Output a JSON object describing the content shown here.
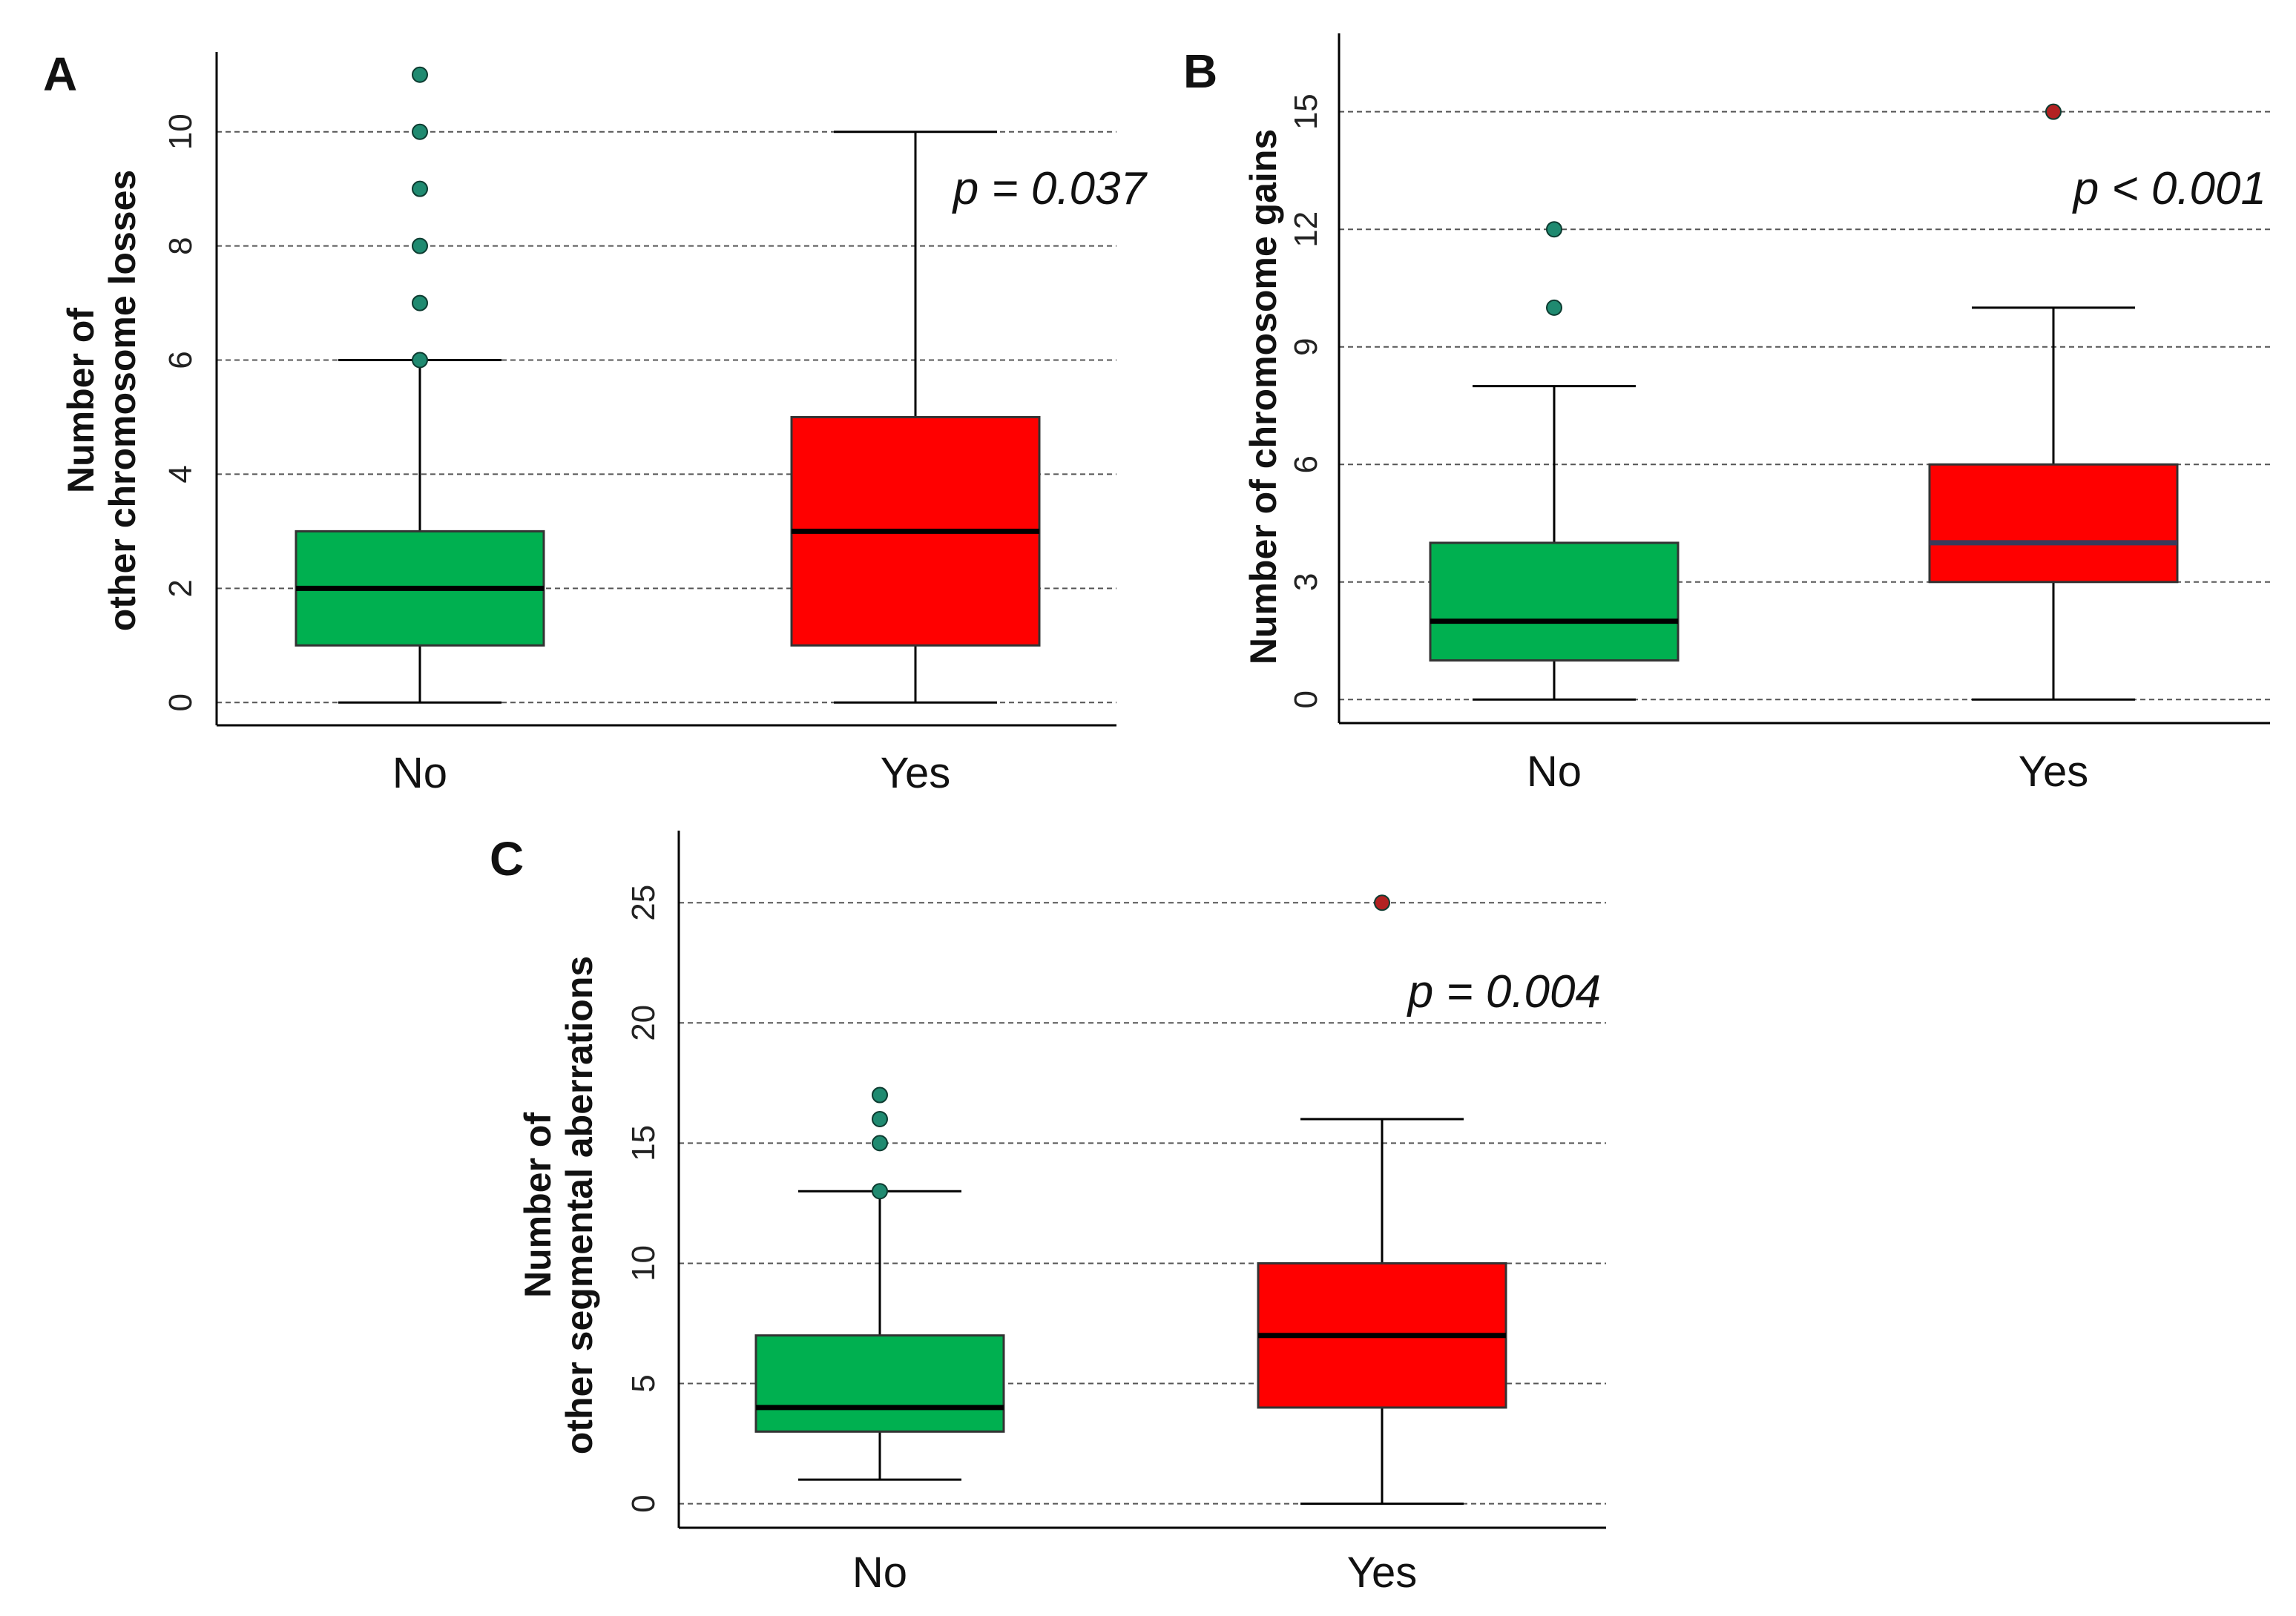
{
  "chart_data": [
    {
      "panel_label": "A",
      "type": "box",
      "categories": [
        "No",
        "Yes"
      ],
      "ylabel_lines": [
        "Number of",
        "other chromosome losses"
      ],
      "ylim": [
        -0.4,
        11.4
      ],
      "yticks": [
        0,
        2,
        4,
        6,
        8,
        10
      ],
      "grid": true,
      "annotation": "p = 0.037",
      "boxes": [
        {
          "name": "No",
          "color": "#00b050",
          "median_color": "#000000",
          "min": 0,
          "q1": 1,
          "median": 2,
          "q3": 3,
          "max": 6,
          "outliers": [
            6,
            7,
            8,
            9,
            10,
            11
          ],
          "outlier_color": "#1f8a70"
        },
        {
          "name": "Yes",
          "color": "#ff0000",
          "median_color": "#000000",
          "min": 0,
          "q1": 1,
          "median": 3,
          "q3": 5,
          "max": 10,
          "outliers": [],
          "outlier_color": "#b22222"
        }
      ]
    },
    {
      "panel_label": "B",
      "type": "box",
      "categories": [
        "No",
        "Yes"
      ],
      "ylabel_lines": [
        "Number of chromosome gains"
      ],
      "ylim": [
        -0.6,
        17.0
      ],
      "yticks": [
        0,
        3,
        6,
        9,
        12,
        15
      ],
      "grid": true,
      "annotation": "p < 0.001",
      "boxes": [
        {
          "name": "No",
          "color": "#00b050",
          "median_color": "#000000",
          "min": 0,
          "q1": 1,
          "median": 2,
          "q3": 4,
          "max": 8,
          "outliers": [
            10,
            12
          ],
          "outlier_color": "#1f8a70"
        },
        {
          "name": "Yes",
          "color": "#ff0000",
          "median_color": "#3a3a5a",
          "min": 0,
          "q1": 3,
          "median": 4,
          "q3": 6,
          "max": 10,
          "outliers": [
            15
          ],
          "outlier_color": "#b22222"
        }
      ]
    },
    {
      "panel_label": "C",
      "type": "box",
      "categories": [
        "No",
        "Yes"
      ],
      "ylabel_lines": [
        "Number of",
        "other segmental aberrations"
      ],
      "ylim": [
        -1.0,
        28.0
      ],
      "yticks": [
        0,
        5,
        10,
        15,
        20,
        25
      ],
      "grid": true,
      "annotation": "p = 0.004",
      "boxes": [
        {
          "name": "No",
          "color": "#00b050",
          "median_color": "#000000",
          "min": 1,
          "q1": 3,
          "median": 4,
          "q3": 7,
          "max": 13,
          "outliers": [
            13,
            15,
            16,
            17
          ],
          "outlier_color": "#1f8a70"
        },
        {
          "name": "Yes",
          "color": "#ff0000",
          "median_color": "#000000",
          "min": 0,
          "q1": 4,
          "median": 7,
          "q3": 10,
          "max": 16,
          "outliers": [
            25
          ],
          "outlier_color": "#b22222"
        }
      ]
    }
  ]
}
